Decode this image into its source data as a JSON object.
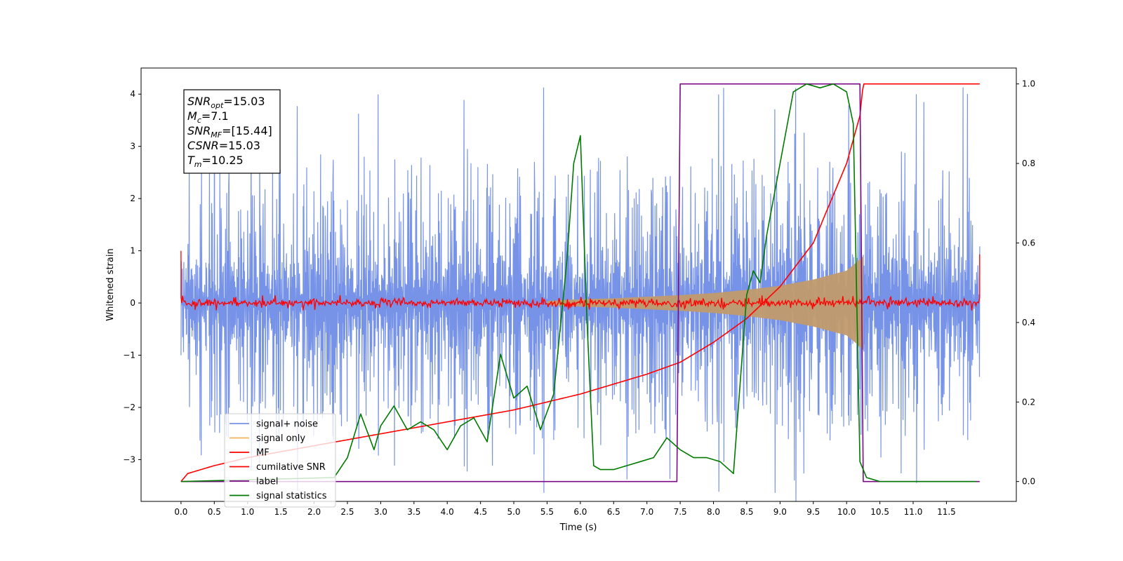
{
  "chart_data": {
    "type": "line",
    "xlabel": "Time (s)",
    "ylabel": "Whitened strain",
    "xlim": [
      -0.6,
      12.55
    ],
    "ylim": [
      -3.8,
      4.5
    ],
    "y2lim": [
      -0.05,
      1.04
    ],
    "x_ticks": [
      0.0,
      0.5,
      1.0,
      1.5,
      2.0,
      2.5,
      3.0,
      3.5,
      4.0,
      4.5,
      5.0,
      5.5,
      6.0,
      6.5,
      7.0,
      7.5,
      8.0,
      8.5,
      9.0,
      9.5,
      10.0,
      10.5,
      11.0,
      11.5
    ],
    "x_tick_labels": [
      "0.0",
      "0.5",
      "1.0",
      "1.5",
      "2.0",
      "2.5",
      "3.0",
      "3.5",
      "4.0",
      "4.5",
      "5.0",
      "5.5",
      "6.0",
      "6.5",
      "7.0",
      "7.5",
      "8.0",
      "8.5",
      "9.0",
      "9.5",
      "10.0",
      "10.5",
      "11.0",
      "11.5"
    ],
    "y_ticks": [
      -3,
      -2,
      -1,
      0,
      1,
      2,
      3,
      4
    ],
    "y_tick_labels": [
      "−3",
      "−2",
      "−1",
      "0",
      "1",
      "2",
      "3",
      "4"
    ],
    "y2_ticks": [
      0.0,
      0.2,
      0.4,
      0.6,
      0.8,
      1.0
    ],
    "y2_tick_labels": [
      "0.0",
      "0.2",
      "0.4",
      "0.6",
      "0.8",
      "1.0"
    ],
    "grid": false,
    "legend_position": "lower-left",
    "annotation": {
      "lines": [
        {
          "base": "SNR",
          "sub": "opt",
          "value": "=15.03"
        },
        {
          "base": "M",
          "sub": "c",
          "value": "=7.1"
        },
        {
          "base": "SNR",
          "sub": "MF",
          "value": "=[15.44]"
        },
        {
          "base": "CSNR",
          "sub": "",
          "value": "=15.03"
        },
        {
          "base": "T",
          "sub": "m",
          "value": "=10.25"
        }
      ]
    },
    "series": [
      {
        "name": "signal+ noise",
        "color": "#7793e8",
        "axis": "left",
        "style": "noise band",
        "x_range": [
          0.0,
          12.0
        ],
        "typical_envelope": [
          -2.3,
          2.5
        ],
        "extreme_peaks": [
          -3.4,
          4.15
        ]
      },
      {
        "name": "signal only",
        "color": "#f5b45a",
        "axis": "left",
        "style": "chirp envelope",
        "x": [
          5.5,
          6.0,
          6.5,
          7.0,
          7.5,
          8.0,
          8.5,
          9.0,
          9.5,
          10.0,
          10.15,
          10.25
        ],
        "y_envelope": [
          0.04,
          0.07,
          0.09,
          0.12,
          0.15,
          0.19,
          0.25,
          0.33,
          0.45,
          0.62,
          0.78,
          0.9
        ]
      },
      {
        "name": "MF",
        "color": "#ff0000",
        "axis": "left",
        "style": "noise band",
        "x_range": [
          0.0,
          12.0
        ],
        "typical_envelope": [
          -0.1,
          0.12
        ],
        "edge_values": [
          1.0,
          0.93
        ]
      },
      {
        "name": "cumilative SNR",
        "color": "#ff0000",
        "axis": "right",
        "x": [
          0.0,
          0.1,
          0.5,
          1.0,
          2.0,
          3.0,
          4.0,
          5.0,
          6.0,
          7.0,
          7.5,
          8.0,
          8.5,
          9.0,
          9.5,
          10.0,
          10.2,
          10.25,
          12.0
        ],
        "y": [
          0.0,
          0.02,
          0.04,
          0.06,
          0.09,
          0.12,
          0.15,
          0.18,
          0.22,
          0.27,
          0.3,
          0.35,
          0.41,
          0.49,
          0.6,
          0.8,
          0.92,
          1.0,
          1.0
        ]
      },
      {
        "name": "label",
        "color": "#7b0a86",
        "axis": "right",
        "x": [
          0.0,
          7.45,
          7.5,
          10.2,
          10.25,
          12.0
        ],
        "y": [
          0.0,
          0.0,
          1.0,
          1.0,
          0.0,
          0.0
        ]
      },
      {
        "name": "signal statistics",
        "color": "#007a00",
        "axis": "right",
        "x": [
          0.0,
          2.3,
          2.5,
          2.7,
          2.9,
          3.0,
          3.2,
          3.4,
          3.6,
          3.8,
          4.0,
          4.2,
          4.4,
          4.6,
          4.8,
          5.0,
          5.2,
          5.4,
          5.6,
          5.8,
          5.9,
          6.0,
          6.1,
          6.2,
          6.3,
          6.5,
          6.7,
          6.9,
          7.1,
          7.3,
          7.5,
          7.7,
          7.9,
          8.1,
          8.3,
          8.5,
          8.6,
          8.7,
          8.8,
          9.0,
          9.2,
          9.4,
          9.6,
          9.8,
          10.0,
          10.1,
          10.2,
          10.3,
          10.5,
          11.0,
          11.5,
          11.95
        ],
        "y": [
          0.0,
          0.01,
          0.06,
          0.17,
          0.08,
          0.14,
          0.19,
          0.13,
          0.15,
          0.13,
          0.08,
          0.14,
          0.16,
          0.1,
          0.32,
          0.21,
          0.24,
          0.13,
          0.22,
          0.56,
          0.8,
          0.87,
          0.4,
          0.04,
          0.03,
          0.03,
          0.04,
          0.05,
          0.06,
          0.11,
          0.08,
          0.06,
          0.06,
          0.05,
          0.02,
          0.47,
          0.53,
          0.5,
          0.62,
          0.8,
          0.98,
          1.0,
          0.99,
          1.0,
          0.98,
          0.9,
          0.05,
          0.01,
          0.0,
          0.0,
          0.0,
          0.0
        ]
      }
    ]
  }
}
